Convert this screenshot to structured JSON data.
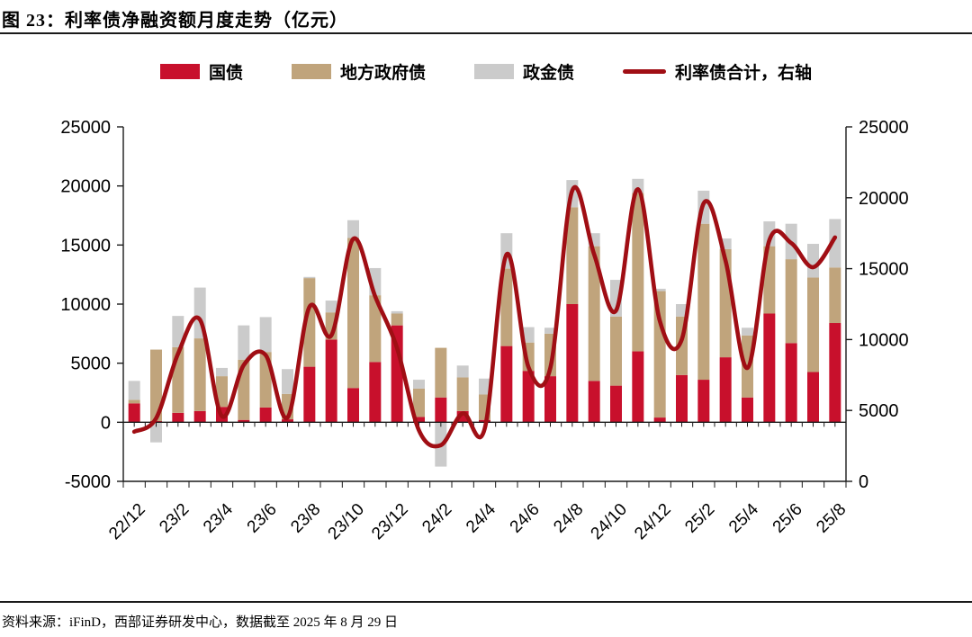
{
  "title": "图 23：利率债净融资额月度走势（亿元）",
  "source": "资料来源：iFinD，西部证券研发中心，数据截至 2025 年 8 月 29 日",
  "colors": {
    "treasury_red": "#C8102C",
    "local_gov_tan": "#C0A47C",
    "policy_bank_gray": "#CBCBCB",
    "total_line_dark_red": "#A00E14",
    "axis_black": "#1a1a1a"
  },
  "chart_data": {
    "type": "bar",
    "subtype": "stacked-bars-with-smoothed-line-overlay",
    "title": "利率债净融资额月度走势（亿元）",
    "categories": [
      "22/12",
      "23/1",
      "23/2",
      "23/3",
      "23/4",
      "23/5",
      "23/6",
      "23/7",
      "23/8",
      "23/9",
      "23/10",
      "23/11",
      "23/12",
      "24/1",
      "24/2",
      "24/3",
      "24/4",
      "24/5",
      "24/6",
      "24/7",
      "24/8",
      "24/9",
      "24/10",
      "24/11",
      "24/12",
      "25/1",
      "25/2",
      "25/3",
      "25/4",
      "25/5",
      "25/6",
      "25/7",
      "25/8"
    ],
    "x_tick_labels": [
      "22/12",
      "23/2",
      "23/4",
      "23/6",
      "23/8",
      "23/10",
      "23/12",
      "24/2",
      "24/4",
      "24/6",
      "24/8",
      "24/10",
      "24/12",
      "25/2",
      "25/4",
      "25/6",
      "25/8"
    ],
    "series": [
      {
        "name": "国债",
        "type": "bar",
        "color": "#C8102C",
        "values": [
          1600,
          100,
          800,
          950,
          1300,
          200,
          1250,
          250,
          4700,
          7000,
          2900,
          5100,
          8200,
          450,
          2100,
          950,
          200,
          6450,
          4350,
          3900,
          10000,
          3500,
          3100,
          6000,
          400,
          4000,
          3600,
          5500,
          2100,
          9200,
          6700,
          4250,
          8400
        ]
      },
      {
        "name": "地方政府债",
        "type": "bar",
        "color": "#C0A47C",
        "values": [
          300,
          6050,
          5550,
          6150,
          2600,
          5100,
          4700,
          2150,
          7500,
          2300,
          12700,
          5650,
          1000,
          2400,
          4200,
          2850,
          2150,
          6550,
          2400,
          3600,
          8200,
          11400,
          5850,
          13400,
          10700,
          4950,
          13200,
          9150,
          5250,
          5700,
          7100,
          8000,
          4700
        ]
      },
      {
        "name": "政金债",
        "type": "bar",
        "color": "#CBCBCB",
        "values": [
          1600,
          -1700,
          2650,
          4300,
          700,
          2900,
          2950,
          2100,
          100,
          1000,
          1500,
          2300,
          200,
          750,
          -3750,
          1000,
          1350,
          3000,
          1300,
          500,
          2300,
          1100,
          3100,
          1200,
          200,
          1050,
          2800,
          900,
          650,
          2100,
          3000,
          2850,
          4100
        ]
      },
      {
        "name": "利率债合计，右轴",
        "type": "line",
        "axis": "right",
        "color": "#A00E14",
        "values": [
          3500,
          4450,
          9000,
          11400,
          4600,
          8200,
          8900,
          4500,
          12300,
          10300,
          17100,
          13050,
          9400,
          3600,
          2550,
          4800,
          3700,
          16000,
          8050,
          8000,
          20500,
          16000,
          12050,
          20600,
          11300,
          10000,
          19600,
          15550,
          8000,
          17000,
          16800,
          15100,
          17200
        ]
      }
    ],
    "left_axis": {
      "min": -5000,
      "max": 25000,
      "step": 5000,
      "ticks": [
        25000,
        20000,
        15000,
        10000,
        5000,
        0,
        -5000
      ]
    },
    "right_axis": {
      "min": 0,
      "max": 25000,
      "step": 5000,
      "ticks": [
        25000,
        20000,
        15000,
        10000,
        5000,
        0
      ]
    },
    "grid": false,
    "legend_position": "top-center"
  }
}
